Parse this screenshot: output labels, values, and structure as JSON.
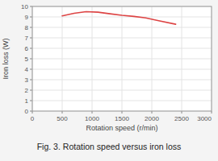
{
  "chart_data": {
    "type": "line",
    "title": "Fig. 3. Rotation speed versus iron loss",
    "x_label": "Rotation speed (r/min)",
    "y_label": "Iron loss (W)",
    "x": [
      500,
      700,
      900,
      1100,
      1300,
      1500,
      1700,
      1900,
      2100,
      2400
    ],
    "values": [
      9.1,
      9.35,
      9.5,
      9.45,
      9.3,
      9.15,
      9.05,
      8.9,
      8.65,
      8.3
    ],
    "color": "#dd4444",
    "xlim": [
      0,
      3000
    ],
    "ylim": [
      0,
      10
    ],
    "xticks": [
      0,
      500,
      1000,
      1500,
      2000,
      2500,
      3000
    ],
    "yticks": [
      0,
      1,
      2,
      3,
      4,
      5,
      6,
      7,
      8,
      9,
      10
    ],
    "grid": true
  }
}
